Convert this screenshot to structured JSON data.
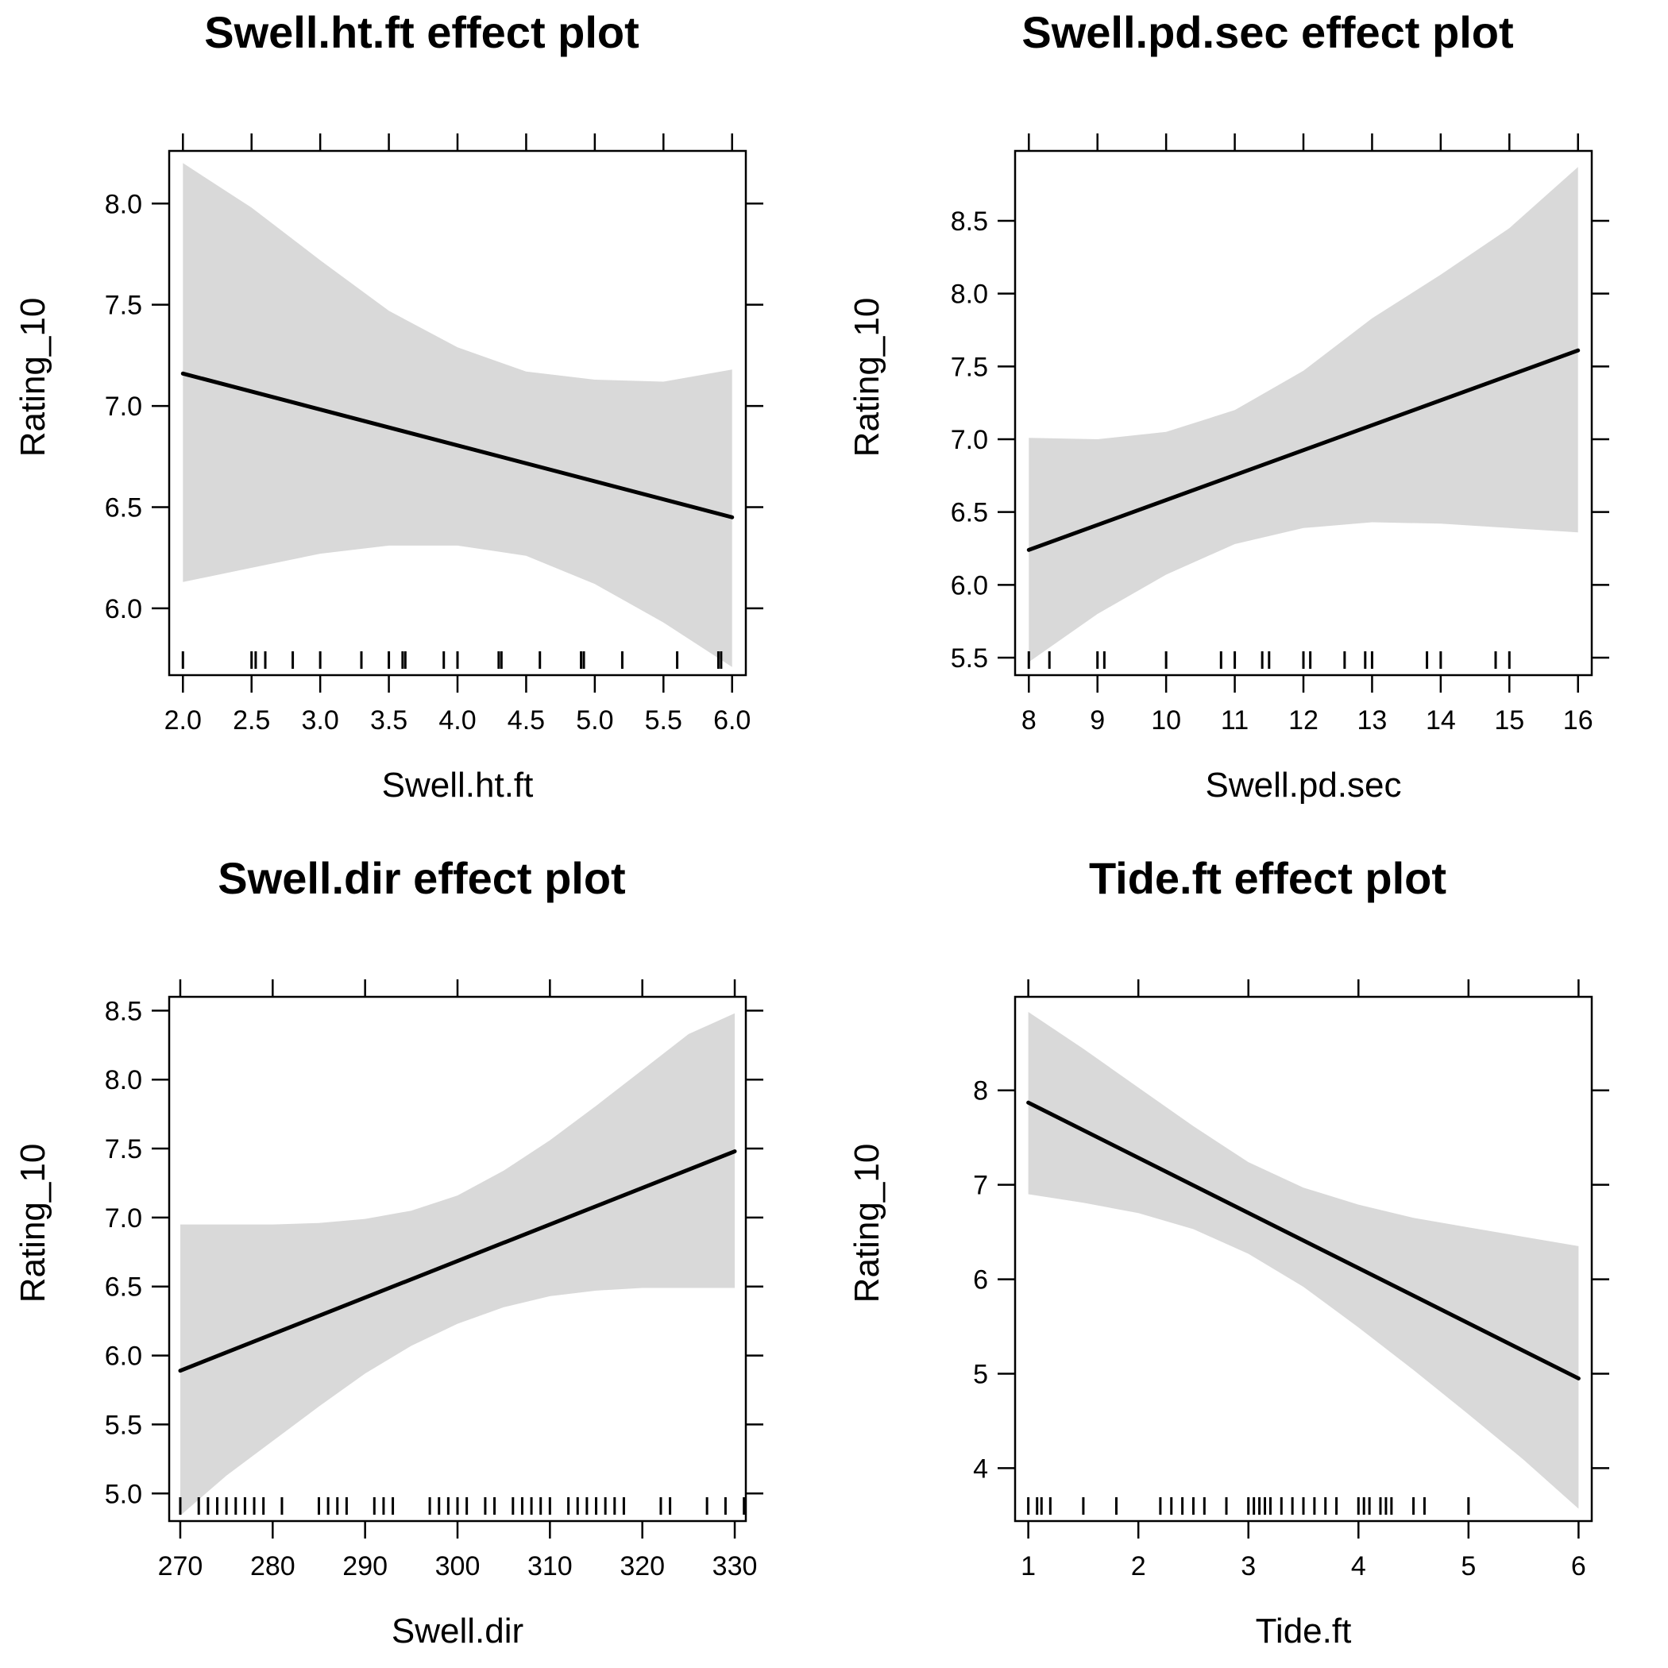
{
  "chart_data": [
    {
      "type": "line",
      "title": "Swell.ht.ft effect plot",
      "xlabel": "Swell.ht.ft",
      "ylabel": "Rating_10",
      "xlim": [
        1.9,
        6.1
      ],
      "ylim": [
        5.67,
        8.26
      ],
      "xticks": [
        2.0,
        2.5,
        3.0,
        3.5,
        4.0,
        4.5,
        5.0,
        5.5,
        6.0
      ],
      "xtick_labels": [
        "2.0",
        "2.5",
        "3.0",
        "3.5",
        "4.0",
        "4.5",
        "5.0",
        "5.5",
        "6.0"
      ],
      "yticks": [
        6.0,
        6.5,
        7.0,
        7.5,
        8.0
      ],
      "ytick_labels": [
        "6.0",
        "6.5",
        "7.0",
        "7.5",
        "8.0"
      ],
      "series": [
        {
          "x": [
            2.0,
            6.0
          ],
          "y": [
            7.16,
            6.45
          ]
        }
      ],
      "confidence_band": {
        "x": [
          2.0,
          2.5,
          3.0,
          3.5,
          4.0,
          4.5,
          5.0,
          5.5,
          6.0
        ],
        "lower": [
          6.13,
          6.2,
          6.27,
          6.31,
          6.31,
          6.26,
          6.12,
          5.93,
          5.71
        ],
        "upper": [
          8.2,
          7.98,
          7.72,
          7.47,
          7.29,
          7.17,
          7.13,
          7.12,
          7.18
        ]
      },
      "rug": [
        2.0,
        2.5,
        2.53,
        2.6,
        2.8,
        3.0,
        3.3,
        3.5,
        3.6,
        3.62,
        3.9,
        4.0,
        4.3,
        4.32,
        4.6,
        4.9,
        4.92,
        5.2,
        5.6,
        5.9,
        5.92
      ]
    },
    {
      "type": "line",
      "title": "Swell.pd.sec effect plot",
      "xlabel": "Swell.pd.sec",
      "ylabel": "Rating_10",
      "xlim": [
        7.8,
        16.2
      ],
      "ylim": [
        5.38,
        8.98
      ],
      "xticks": [
        8,
        9,
        10,
        11,
        12,
        13,
        14,
        15,
        16
      ],
      "xtick_labels": [
        "8",
        "9",
        "10",
        "11",
        "12",
        "13",
        "14",
        "15",
        "16"
      ],
      "yticks": [
        5.5,
        6.0,
        6.5,
        7.0,
        7.5,
        8.0,
        8.5
      ],
      "ytick_labels": [
        "5.5",
        "6.0",
        "6.5",
        "7.0",
        "7.5",
        "8.0",
        "8.5"
      ],
      "series": [
        {
          "x": [
            8,
            16
          ],
          "y": [
            6.24,
            7.61
          ]
        }
      ],
      "confidence_band": {
        "x": [
          8,
          9,
          10,
          11,
          12,
          13,
          14,
          15,
          16
        ],
        "lower": [
          5.47,
          5.8,
          6.07,
          6.28,
          6.39,
          6.43,
          6.42,
          6.39,
          6.36
        ],
        "upper": [
          7.01,
          7.0,
          7.05,
          7.2,
          7.47,
          7.83,
          8.13,
          8.45,
          8.87
        ]
      },
      "rug": [
        8.0,
        8.3,
        9.0,
        9.1,
        10.0,
        10.8,
        11.0,
        11.4,
        11.5,
        12.0,
        12.1,
        12.6,
        12.9,
        13.0,
        13.8,
        14.0,
        14.8,
        15.0
      ]
    },
    {
      "type": "line",
      "title": "Swell.dir effect plot",
      "xlabel": "Swell.dir",
      "ylabel": "Rating_10",
      "xlim": [
        268.8,
        331.2
      ],
      "ylim": [
        4.8,
        8.6
      ],
      "xticks": [
        270,
        280,
        290,
        300,
        310,
        320,
        330
      ],
      "xtick_labels": [
        "270",
        "280",
        "290",
        "300",
        "310",
        "320",
        "330"
      ],
      "yticks": [
        5.0,
        5.5,
        6.0,
        6.5,
        7.0,
        7.5,
        8.0,
        8.5
      ],
      "ytick_labels": [
        "5.0",
        "5.5",
        "6.0",
        "6.5",
        "7.0",
        "7.5",
        "8.0",
        "8.5"
      ],
      "series": [
        {
          "x": [
            270,
            330
          ],
          "y": [
            5.89,
            7.48
          ]
        }
      ],
      "confidence_band": {
        "x": [
          270,
          275,
          280,
          285,
          290,
          295,
          300,
          305,
          310,
          315,
          320,
          325,
          330
        ],
        "lower": [
          4.84,
          5.13,
          5.38,
          5.63,
          5.87,
          6.07,
          6.23,
          6.35,
          6.43,
          6.47,
          6.49,
          6.49,
          6.49
        ],
        "upper": [
          6.95,
          6.95,
          6.95,
          6.96,
          6.99,
          7.05,
          7.16,
          7.34,
          7.56,
          7.81,
          8.07,
          8.33,
          8.48
        ]
      },
      "rug": [
        270,
        272,
        273,
        274,
        275,
        276,
        277,
        278,
        279,
        281,
        285,
        286,
        287,
        288,
        291,
        292,
        293,
        297,
        298,
        299,
        300,
        301,
        303,
        304,
        306,
        307,
        308,
        309,
        310,
        312,
        313,
        314,
        315,
        316,
        317,
        318,
        322,
        323,
        327,
        329,
        331
      ]
    },
    {
      "type": "line",
      "title": "Tide.ft effect plot",
      "xlabel": "Tide.ft",
      "ylabel": "Rating_10",
      "xlim": [
        0.88,
        6.12
      ],
      "ylim": [
        3.44,
        8.99
      ],
      "xticks": [
        1,
        2,
        3,
        4,
        5,
        6
      ],
      "xtick_labels": [
        "1",
        "2",
        "3",
        "4",
        "5",
        "6"
      ],
      "yticks": [
        4,
        5,
        6,
        7,
        8
      ],
      "ytick_labels": [
        "4",
        "5",
        "6",
        "7",
        "8"
      ],
      "series": [
        {
          "x": [
            1,
            6
          ],
          "y": [
            7.87,
            4.95
          ]
        }
      ],
      "confidence_band": {
        "x": [
          1.0,
          1.5,
          2.0,
          2.5,
          3.0,
          3.5,
          4.0,
          4.5,
          5.0,
          5.5,
          6.0
        ],
        "lower": [
          6.9,
          6.81,
          6.7,
          6.53,
          6.27,
          5.92,
          5.49,
          5.04,
          4.57,
          4.09,
          3.57
        ],
        "upper": [
          8.83,
          8.44,
          8.03,
          7.62,
          7.24,
          6.97,
          6.79,
          6.65,
          6.55,
          6.45,
          6.35
        ]
      },
      "rug": [
        1.0,
        1.08,
        1.12,
        1.2,
        1.5,
        1.8,
        2.2,
        2.3,
        2.4,
        2.5,
        2.6,
        2.8,
        3.0,
        3.05,
        3.1,
        3.15,
        3.2,
        3.3,
        3.4,
        3.5,
        3.6,
        3.7,
        3.8,
        4.0,
        4.05,
        4.1,
        4.2,
        4.25,
        4.3,
        4.5,
        4.6,
        5.0
      ]
    }
  ]
}
